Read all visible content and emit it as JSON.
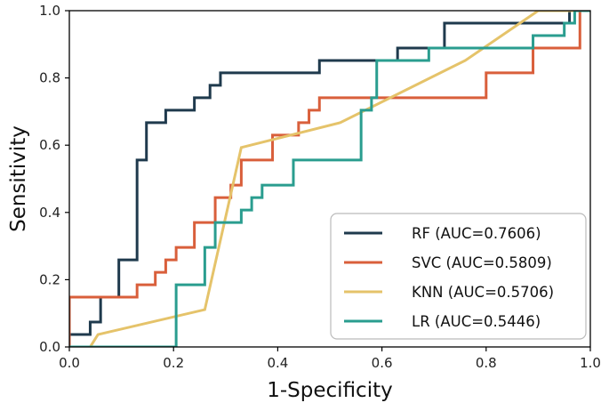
{
  "chart_data": {
    "type": "line",
    "title": "",
    "xlabel": "1-Specificity",
    "ylabel": "Sensitivity",
    "xlim": [
      0,
      1
    ],
    "ylim": [
      0,
      1
    ],
    "xticks": [
      "0.0",
      "0.2",
      "0.4",
      "0.6",
      "0.8",
      "1.0"
    ],
    "yticks": [
      "0.0",
      "0.2",
      "0.4",
      "0.6",
      "0.8",
      "1.0"
    ],
    "grid": false,
    "legend_position": "lower-right",
    "series": [
      {
        "name": "RF (AUC=0.7606)",
        "color": "#1f3a4d",
        "x": [
          0,
          0,
          0.04,
          0.04,
          0.06,
          0.06,
          0.095,
          0.095,
          0.13,
          0.13,
          0.148,
          0.148,
          0.185,
          0.185,
          0.24,
          0.24,
          0.27,
          0.27,
          0.29,
          0.29,
          0.48,
          0.48,
          0.63,
          0.63,
          0.72,
          0.72,
          0.96,
          0.96,
          1.0
        ],
        "y": [
          0,
          0.037,
          0.037,
          0.074,
          0.074,
          0.148,
          0.148,
          0.259,
          0.259,
          0.556,
          0.556,
          0.667,
          0.667,
          0.704,
          0.704,
          0.741,
          0.741,
          0.778,
          0.778,
          0.815,
          0.815,
          0.852,
          0.852,
          0.889,
          0.889,
          0.963,
          0.963,
          1.0,
          1.0
        ]
      },
      {
        "name": "SVC (AUC=0.5809)",
        "color": "#d95f3b",
        "x": [
          0,
          0,
          0.13,
          0.13,
          0.165,
          0.165,
          0.185,
          0.185,
          0.205,
          0.205,
          0.24,
          0.24,
          0.28,
          0.28,
          0.31,
          0.31,
          0.33,
          0.33,
          0.39,
          0.39,
          0.44,
          0.44,
          0.46,
          0.46,
          0.48,
          0.48,
          0.5,
          0.5,
          0.8,
          0.8,
          0.89,
          0.89,
          0.98,
          0.98,
          1.0
        ],
        "y": [
          0,
          0.148,
          0.148,
          0.185,
          0.185,
          0.222,
          0.222,
          0.259,
          0.259,
          0.296,
          0.296,
          0.37,
          0.37,
          0.444,
          0.444,
          0.481,
          0.481,
          0.556,
          0.556,
          0.63,
          0.63,
          0.667,
          0.667,
          0.704,
          0.704,
          0.741,
          0.741,
          0.741,
          0.741,
          0.815,
          0.815,
          0.889,
          0.889,
          1.0,
          1.0
        ]
      },
      {
        "name": "KNN (AUC=0.5706)",
        "color": "#e5c36a",
        "x": [
          0.04,
          0.055,
          0.26,
          0.33,
          0.52,
          0.76,
          0.9,
          1.0
        ],
        "y": [
          0,
          0.037,
          0.111,
          0.593,
          0.667,
          0.852,
          1.0,
          1.0
        ]
      },
      {
        "name": "LR (AUC=0.5446)",
        "color": "#2a9d8f",
        "x": [
          0,
          0.205,
          0.205,
          0.26,
          0.26,
          0.28,
          0.28,
          0.33,
          0.33,
          0.35,
          0.35,
          0.37,
          0.37,
          0.43,
          0.43,
          0.56,
          0.56,
          0.58,
          0.58,
          0.59,
          0.59,
          0.69,
          0.69,
          0.89,
          0.89,
          0.95,
          0.95,
          0.97,
          0.97,
          1.0
        ],
        "y": [
          0,
          0,
          0.185,
          0.185,
          0.296,
          0.296,
          0.37,
          0.37,
          0.407,
          0.407,
          0.444,
          0.444,
          0.481,
          0.481,
          0.556,
          0.556,
          0.704,
          0.704,
          0.741,
          0.741,
          0.852,
          0.852,
          0.889,
          0.889,
          0.926,
          0.926,
          0.963,
          0.963,
          1.0,
          1.0
        ]
      }
    ]
  }
}
